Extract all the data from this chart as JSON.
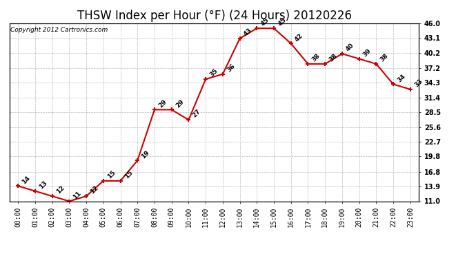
{
  "title": "THSW Index per Hour (°F) (24 Hours) 20120226",
  "copyright": "Copyright 2012 Cartronics.com",
  "hours": [
    "00:00",
    "01:00",
    "02:00",
    "03:00",
    "04:00",
    "05:00",
    "06:00",
    "07:00",
    "08:00",
    "09:00",
    "10:00",
    "11:00",
    "12:00",
    "13:00",
    "14:00",
    "15:00",
    "16:00",
    "17:00",
    "18:00",
    "19:00",
    "20:00",
    "21:00",
    "22:00",
    "23:00"
  ],
  "values": [
    14,
    13,
    12,
    11,
    12,
    15,
    15,
    19,
    29,
    29,
    27,
    35,
    36,
    43,
    45,
    45,
    42,
    38,
    38,
    40,
    39,
    38,
    34,
    33
  ],
  "line_color": "#cc0000",
  "marker_color": "#cc0000",
  "bg_color": "#ffffff",
  "grid_color": "#bbbbbb",
  "yticks": [
    11.0,
    13.9,
    16.8,
    19.8,
    22.7,
    25.6,
    28.5,
    31.4,
    34.3,
    37.2,
    40.2,
    43.1,
    46.0
  ],
  "ylim": [
    11.0,
    46.0
  ],
  "title_fontsize": 12,
  "tick_fontsize": 7,
  "annot_fontsize": 6.5,
  "copyright_fontsize": 6.5
}
